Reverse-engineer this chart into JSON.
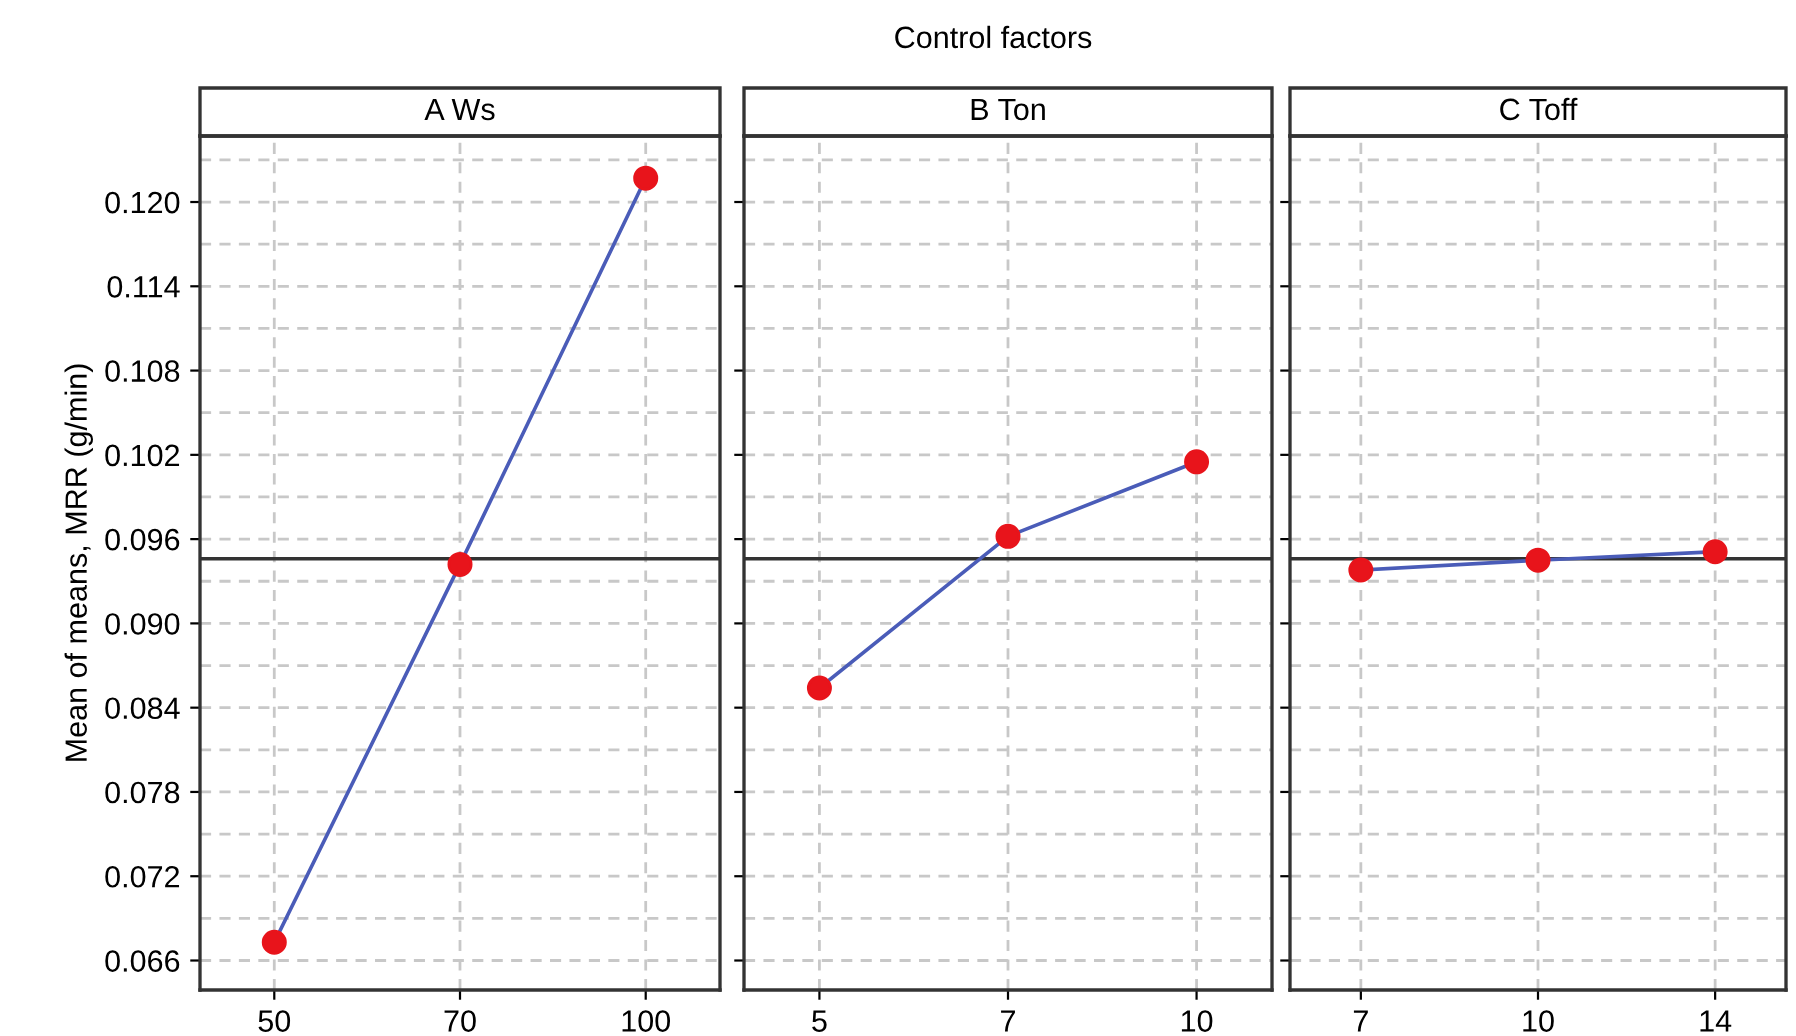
{
  "chart_data": [
    {
      "type": "line",
      "title": "A Ws",
      "ylabel": "Mean of means, MRR (g/min)",
      "annotations": [
        "Control factors"
      ],
      "categories": [
        "50",
        "70",
        "100"
      ],
      "series": [
        {
          "color": "#4a5cb8",
          "colors": [
            "#e8141b",
            "#e8141b",
            "#e8141b"
          ],
          "values": [
            0.0673,
            0.0942,
            0.1217
          ]
        }
      ],
      "marker": "circle",
      "line_style": "solid",
      "ylim": [
        0.0639,
        0.1247
      ],
      "yticks": [
        0.066,
        {
          "value": 0.069,
          "label": null
        },
        0.072,
        {
          "value": 0.075,
          "label": null
        },
        0.078,
        {
          "value": 0.081,
          "label": null
        },
        0.084,
        {
          "value": 0.087,
          "label": null
        },
        {
          "value": 0.09,
          "label": "0.090"
        },
        {
          "value": 0.093,
          "label": null
        },
        0.096,
        {
          "value": 0.099,
          "label": null
        },
        0.102,
        {
          "value": 0.105,
          "label": null
        },
        0.108,
        {
          "value": 0.111,
          "label": null
        },
        0.114,
        {
          "value": 0.117,
          "label": null
        },
        {
          "value": 0.12,
          "label": "0.120"
        },
        {
          "value": 0.123,
          "label": null
        }
      ],
      "ref_lines": [
        {
          "axis": "y",
          "value": 0.0946,
          "label": null,
          "color": "#333333"
        }
      ],
      "grid": true
    },
    {
      "type": "line",
      "title": "B Ton",
      "categories": [
        "5",
        "7",
        "10"
      ],
      "series": [
        {
          "color": "#4a5cb8",
          "colors": [
            "#e8141b",
            "#e8141b",
            "#e8141b"
          ],
          "values": [
            0.0854,
            0.0962,
            0.1015
          ]
        }
      ],
      "marker": "circle",
      "line_style": "solid",
      "ylim": [
        0.0639,
        0.1247
      ],
      "yticks": [
        0.066,
        {
          "value": 0.069,
          "label": null
        },
        0.072,
        {
          "value": 0.075,
          "label": null
        },
        0.078,
        {
          "value": 0.081,
          "label": null
        },
        0.084,
        {
          "value": 0.087,
          "label": null
        },
        0.09,
        {
          "value": 0.093,
          "label": null
        },
        0.096,
        {
          "value": 0.099,
          "label": null
        },
        0.102,
        {
          "value": 0.105,
          "label": null
        },
        0.108,
        {
          "value": 0.111,
          "label": null
        },
        0.114,
        {
          "value": 0.117,
          "label": null
        },
        0.12,
        {
          "value": 0.123,
          "label": null
        }
      ],
      "ref_lines": [
        {
          "axis": "y",
          "value": 0.0946,
          "label": null,
          "color": "#333333"
        }
      ],
      "grid": true,
      "tick_labels": "x"
    },
    {
      "type": "line",
      "title": "C Toff",
      "categories": [
        "7",
        "10",
        "14"
      ],
      "series": [
        {
          "color": "#4a5cb8",
          "colors": [
            "#e8141b",
            "#e8141b",
            "#e8141b"
          ],
          "values": [
            0.0938,
            0.0945,
            0.0951
          ]
        }
      ],
      "marker": "circle",
      "line_style": "solid",
      "ylim": [
        0.0639,
        0.1247
      ],
      "yticks": [
        0.066,
        {
          "value": 0.069,
          "label": null
        },
        0.072,
        {
          "value": 0.075,
          "label": null
        },
        0.078,
        {
          "value": 0.081,
          "label": null
        },
        0.084,
        {
          "value": 0.087,
          "label": null
        },
        0.09,
        {
          "value": 0.093,
          "label": null
        },
        0.096,
        {
          "value": 0.099,
          "label": null
        },
        0.102,
        {
          "value": 0.105,
          "label": null
        },
        0.108,
        {
          "value": 0.111,
          "label": null
        },
        0.114,
        {
          "value": 0.117,
          "label": null
        },
        0.12,
        {
          "value": 0.123,
          "label": null
        }
      ],
      "ref_lines": [
        {
          "axis": "y",
          "value": 0.0946,
          "label": null,
          "color": "#333333"
        }
      ],
      "grid": true,
      "tick_labels": "x"
    }
  ]
}
